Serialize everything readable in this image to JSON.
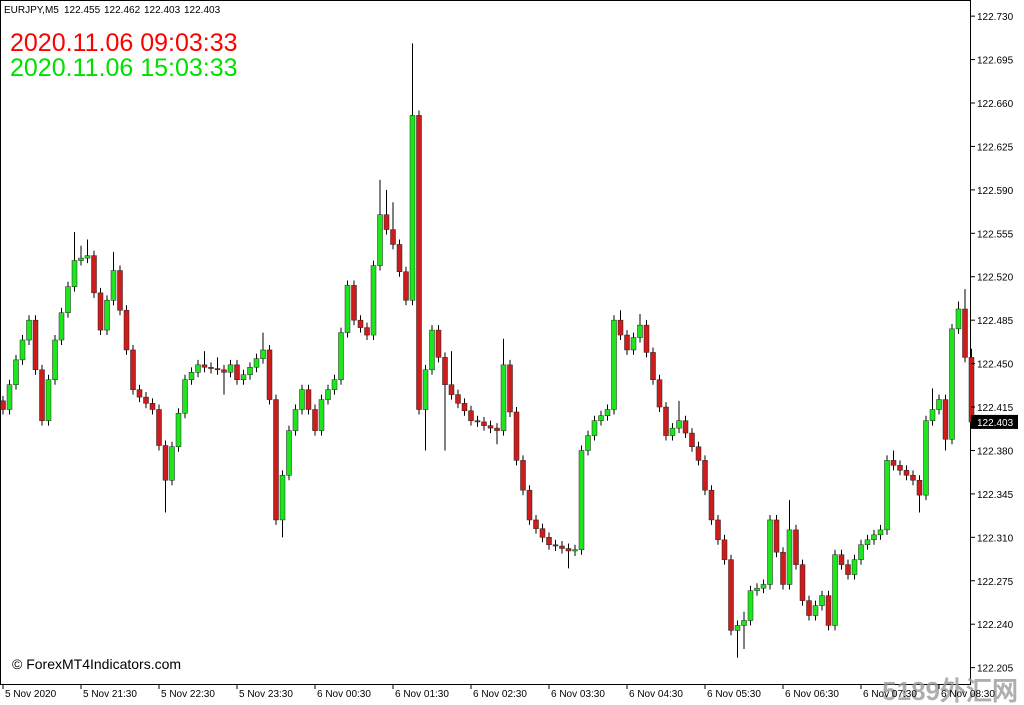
{
  "chart_data": {
    "type": "candlestick",
    "symbol": "EURJPY,M5",
    "time_red": "2020.11.06 09:03:33",
    "time_green": "2020.11.06 15:03:33",
    "copyright": "© ForexMT4Indicators.com",
    "watermark": "5189外汇网",
    "bull_color": "#1ee61e",
    "bear_color": "#cc1c1c",
    "time_red_color": "#ff0000",
    "time_green_color": "#00e000",
    "ylim": [
      122.191,
      122.743
    ],
    "yticks": [
      {
        "value": 122.73,
        "label": "122.730"
      },
      122.695,
      {
        "value": 122.66,
        "label": "122.660"
      },
      122.625,
      {
        "value": 122.59,
        "label": "122.590"
      },
      122.555,
      {
        "value": 122.52,
        "label": "122.520"
      },
      122.485,
      {
        "value": 122.45,
        "label": "122.450"
      },
      122.415,
      {
        "value": 122.38,
        "label": "122.380"
      },
      122.345,
      {
        "value": 122.31,
        "label": "122.310"
      },
      122.275,
      {
        "value": 122.24,
        "label": "122.240"
      },
      122.205
    ],
    "categories": [
      "5 Nov 2020",
      null,
      null,
      null,
      null,
      null,
      null,
      null,
      null,
      null,
      null,
      null,
      "5 Nov 21:30",
      null,
      null,
      null,
      null,
      null,
      null,
      null,
      null,
      null,
      null,
      null,
      "5 Nov 22:30",
      null,
      null,
      null,
      null,
      null,
      null,
      null,
      null,
      null,
      null,
      null,
      "5 Nov 23:30",
      null,
      null,
      null,
      null,
      null,
      null,
      null,
      null,
      null,
      null,
      null,
      "6 Nov 00:30",
      null,
      null,
      null,
      null,
      null,
      null,
      null,
      null,
      null,
      null,
      null,
      "6 Nov 01:30",
      null,
      null,
      null,
      null,
      null,
      null,
      null,
      null,
      null,
      null,
      null,
      "6 Nov 02:30",
      null,
      null,
      null,
      null,
      null,
      null,
      null,
      null,
      null,
      null,
      null,
      "6 Nov 03:30",
      null,
      null,
      null,
      null,
      null,
      null,
      null,
      null,
      null,
      null,
      null,
      "6 Nov 04:30",
      null,
      null,
      null,
      null,
      null,
      null,
      null,
      null,
      null,
      null,
      null,
      "6 Nov 05:30",
      null,
      null,
      null,
      null,
      null,
      null,
      null,
      null,
      null,
      null,
      null,
      "6 Nov 06:30",
      null,
      null,
      null,
      null,
      null,
      null,
      null,
      null,
      null,
      null,
      null,
      "6 Nov 07:30",
      null,
      null,
      null,
      null,
      null,
      null,
      null,
      null,
      null,
      null,
      null,
      "6 Nov 08:30",
      null,
      null,
      null,
      null,
      null
    ],
    "open": [
      122.42,
      122.413,
      122.433,
      122.453,
      122.469,
      122.485,
      122.445,
      122.404,
      122.437,
      122.469,
      122.491,
      122.512,
      122.533,
      122.535,
      122.537,
      122.507,
      122.477,
      122.501,
      122.525,
      122.493,
      122.461,
      122.429,
      122.423,
      122.418,
      122.413,
      122.384,
      122.356,
      122.383,
      122.41,
      122.437,
      122.443,
      122.449,
      122.447,
      122.446,
      122.445,
      122.443,
      122.449,
      122.437,
      122.441,
      122.447,
      122.454,
      122.461,
      122.421,
      122.324,
      122.36,
      122.396,
      122.413,
      122.429,
      122.413,
      122.396,
      122.421,
      122.429,
      122.437,
      122.475,
      122.513,
      122.485,
      122.479,
      122.473,
      122.529,
      122.57,
      122.558,
      122.546,
      122.524,
      122.501,
      122.65,
      122.413,
      122.445,
      122.477,
      122.455,
      122.433,
      122.425,
      122.418,
      122.412,
      122.404,
      122.403,
      122.4,
      122.398,
      122.396,
      122.449,
      122.411,
      122.372,
      122.348,
      122.324,
      122.317,
      122.31,
      122.304,
      122.303,
      122.301,
      122.299,
      122.3,
      122.38,
      122.392,
      122.404,
      122.408,
      122.413,
      122.485,
      122.473,
      122.461,
      122.471,
      122.481,
      122.459,
      122.437,
      122.415,
      122.392,
      122.398,
      122.404,
      122.394,
      122.383,
      122.372,
      122.348,
      122.324,
      122.308,
      122.292,
      122.235,
      122.239,
      122.243,
      122.267,
      122.269,
      122.272,
      122.324,
      122.298,
      122.272,
      122.316,
      122.288,
      122.259,
      122.247,
      122.255,
      122.263,
      122.239,
      122.296,
      122.288,
      122.28,
      122.292,
      122.304,
      122.308,
      122.312,
      122.316,
      122.372,
      122.368,
      122.364,
      122.36,
      122.356,
      122.344,
      122.404,
      122.413,
      122.421,
      122.389,
      122.478,
      122.494,
      122.455
    ],
    "high": [
      122.424,
      122.437,
      122.457,
      122.473,
      122.489,
      122.489,
      122.449,
      122.441,
      122.473,
      122.495,
      122.516,
      122.556,
      122.545,
      122.55,
      122.541,
      122.511,
      122.505,
      122.54,
      122.529,
      122.497,
      122.465,
      122.433,
      122.427,
      122.422,
      122.417,
      122.388,
      122.387,
      122.414,
      122.441,
      122.447,
      122.453,
      122.46,
      122.451,
      122.455,
      122.449,
      122.453,
      122.453,
      122.445,
      122.451,
      122.458,
      122.475,
      122.465,
      122.425,
      122.364,
      122.4,
      122.417,
      122.433,
      122.433,
      122.417,
      122.425,
      122.433,
      122.441,
      122.479,
      122.517,
      122.517,
      122.489,
      122.483,
      122.533,
      122.598,
      122.59,
      122.58,
      122.55,
      122.528,
      122.708,
      122.654,
      122.449,
      122.481,
      122.481,
      122.459,
      122.46,
      122.429,
      122.422,
      122.416,
      122.408,
      122.407,
      122.404,
      122.402,
      122.47,
      122.453,
      122.415,
      122.376,
      122.352,
      122.328,
      122.321,
      122.314,
      122.308,
      122.307,
      122.305,
      122.304,
      122.384,
      122.396,
      122.408,
      122.412,
      122.417,
      122.489,
      122.493,
      122.477,
      122.475,
      122.49,
      122.485,
      122.463,
      122.441,
      122.419,
      122.402,
      122.42,
      122.408,
      122.398,
      122.387,
      122.376,
      122.352,
      122.328,
      122.312,
      122.296,
      122.243,
      122.25,
      122.271,
      122.273,
      122.276,
      122.328,
      122.328,
      122.302,
      122.34,
      122.32,
      122.292,
      122.263,
      122.259,
      122.267,
      122.267,
      122.3,
      122.3,
      122.292,
      122.296,
      122.308,
      122.312,
      122.316,
      122.32,
      122.376,
      122.38,
      122.372,
      122.368,
      122.364,
      122.36,
      122.408,
      122.43,
      122.425,
      122.425,
      122.482,
      122.5,
      122.51,
      122.462
    ],
    "low": [
      122.409,
      122.409,
      122.429,
      122.449,
      122.465,
      122.441,
      122.4,
      122.4,
      122.433,
      122.465,
      122.487,
      122.508,
      122.529,
      122.531,
      122.503,
      122.473,
      122.473,
      122.497,
      122.489,
      122.457,
      122.425,
      122.419,
      122.414,
      122.409,
      122.38,
      122.33,
      122.352,
      122.379,
      122.406,
      122.433,
      122.439,
      122.443,
      122.442,
      122.441,
      122.425,
      122.439,
      122.433,
      122.433,
      122.437,
      122.443,
      122.45,
      122.417,
      122.32,
      122.31,
      122.356,
      122.392,
      122.409,
      122.409,
      122.392,
      122.392,
      122.417,
      122.425,
      122.433,
      122.471,
      122.481,
      122.475,
      122.469,
      122.469,
      122.525,
      122.554,
      122.542,
      122.52,
      122.497,
      122.497,
      122.409,
      122.38,
      122.441,
      122.451,
      122.38,
      122.421,
      122.414,
      122.408,
      122.4,
      122.399,
      122.396,
      122.394,
      122.385,
      122.392,
      122.407,
      122.368,
      122.344,
      122.32,
      122.313,
      122.306,
      122.3,
      122.299,
      122.297,
      122.285,
      122.295,
      122.296,
      122.376,
      122.388,
      122.4,
      122.404,
      122.409,
      122.469,
      122.457,
      122.457,
      122.467,
      122.455,
      122.433,
      122.411,
      122.388,
      122.388,
      122.394,
      122.39,
      122.379,
      122.368,
      122.344,
      122.32,
      122.304,
      122.288,
      122.231,
      122.213,
      122.22,
      122.239,
      122.263,
      122.265,
      122.268,
      122.294,
      122.268,
      122.268,
      122.284,
      122.255,
      122.243,
      122.243,
      122.251,
      122.235,
      122.235,
      122.284,
      122.276,
      122.276,
      122.288,
      122.3,
      122.304,
      122.308,
      122.312,
      122.364,
      122.36,
      122.356,
      122.352,
      122.33,
      122.34,
      122.4,
      122.409,
      122.38,
      122.385,
      122.474,
      122.451,
      122.403
    ],
    "close": [
      122.413,
      122.433,
      122.453,
      122.469,
      122.485,
      122.445,
      122.404,
      122.437,
      122.469,
      122.491,
      122.512,
      122.533,
      122.535,
      122.537,
      122.507,
      122.477,
      122.501,
      122.525,
      122.493,
      122.461,
      122.429,
      122.423,
      122.418,
      122.413,
      122.384,
      122.356,
      122.383,
      122.41,
      122.437,
      122.443,
      122.449,
      122.447,
      122.446,
      122.445,
      122.443,
      122.449,
      122.437,
      122.441,
      122.447,
      122.454,
      122.461,
      122.421,
      122.324,
      122.36,
      122.396,
      122.413,
      122.429,
      122.413,
      122.396,
      122.421,
      122.429,
      122.437,
      122.475,
      122.513,
      122.485,
      122.479,
      122.473,
      122.529,
      122.57,
      122.558,
      122.546,
      122.524,
      122.501,
      122.65,
      122.413,
      122.445,
      122.477,
      122.455,
      122.433,
      122.425,
      122.418,
      122.412,
      122.404,
      122.403,
      122.4,
      122.398,
      122.396,
      122.449,
      122.411,
      122.372,
      122.348,
      122.324,
      122.317,
      122.31,
      122.304,
      122.303,
      122.301,
      122.299,
      122.3,
      122.38,
      122.392,
      122.404,
      122.408,
      122.413,
      122.485,
      122.473,
      122.461,
      122.471,
      122.481,
      122.459,
      122.437,
      122.415,
      122.392,
      122.398,
      122.404,
      122.394,
      122.383,
      122.372,
      122.348,
      122.324,
      122.308,
      122.292,
      122.235,
      122.239,
      122.243,
      122.267,
      122.269,
      122.272,
      122.324,
      122.298,
      122.272,
      122.316,
      122.288,
      122.259,
      122.247,
      122.255,
      122.263,
      122.239,
      122.296,
      122.288,
      122.28,
      122.292,
      122.304,
      122.308,
      122.312,
      122.316,
      122.372,
      122.368,
      122.364,
      122.36,
      122.356,
      122.344,
      122.404,
      122.413,
      122.421,
      122.389,
      122.478,
      122.494,
      122.455,
      122.403
    ]
  }
}
